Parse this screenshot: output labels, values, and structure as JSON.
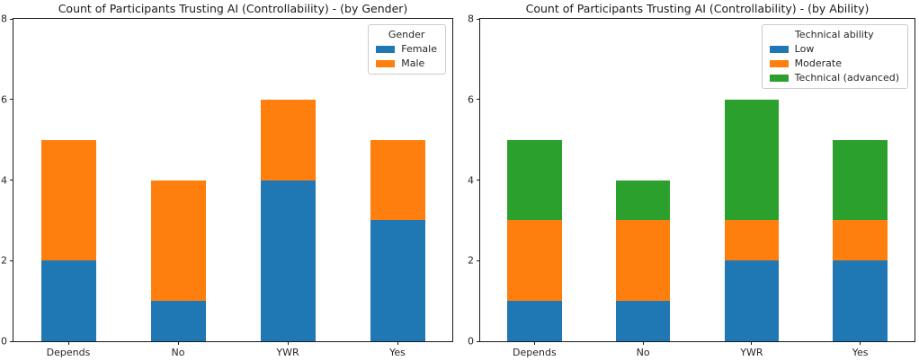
{
  "figure": {
    "background": "#ffffff"
  },
  "chart_data": [
    {
      "type": "bar",
      "stacked": true,
      "title": "Count of Participants Trusting AI (Controllability) - (by Gender)",
      "categories": [
        "Depends",
        "No",
        "YWR",
        "Yes"
      ],
      "series": [
        {
          "name": "Female",
          "color": "#1f77b4",
          "values": [
            2,
            1,
            4,
            3
          ]
        },
        {
          "name": "Male",
          "color": "#ff7f0e",
          "values": [
            3,
            3,
            2,
            2
          ]
        }
      ],
      "totals": [
        5,
        4,
        6,
        5
      ],
      "legend": {
        "title": "Gender",
        "position": "upper-right"
      },
      "xlabel": "",
      "ylabel": "",
      "ylim": [
        0,
        8
      ],
      "y_ticks": [
        0,
        2,
        4,
        6,
        8
      ],
      "bar_width_fraction": 0.5,
      "grid": false
    },
    {
      "type": "bar",
      "stacked": true,
      "title": "Count of Participants Trusting AI (Controllability) - (by Ability)",
      "categories": [
        "Depends",
        "No",
        "YWR",
        "Yes"
      ],
      "series": [
        {
          "name": "Low",
          "color": "#1f77b4",
          "values": [
            1,
            1,
            2,
            2
          ]
        },
        {
          "name": "Moderate",
          "color": "#ff7f0e",
          "values": [
            2,
            2,
            1,
            1
          ]
        },
        {
          "name": "Technical (advanced)",
          "color": "#2ca02c",
          "values": [
            2,
            1,
            3,
            2
          ]
        }
      ],
      "totals": [
        5,
        4,
        6,
        5
      ],
      "legend": {
        "title": "Technical ability",
        "position": "upper-right"
      },
      "xlabel": "",
      "ylabel": "",
      "ylim": [
        0,
        8
      ],
      "y_ticks": [
        0,
        2,
        4,
        6,
        8
      ],
      "bar_width_fraction": 0.5,
      "grid": false
    }
  ]
}
